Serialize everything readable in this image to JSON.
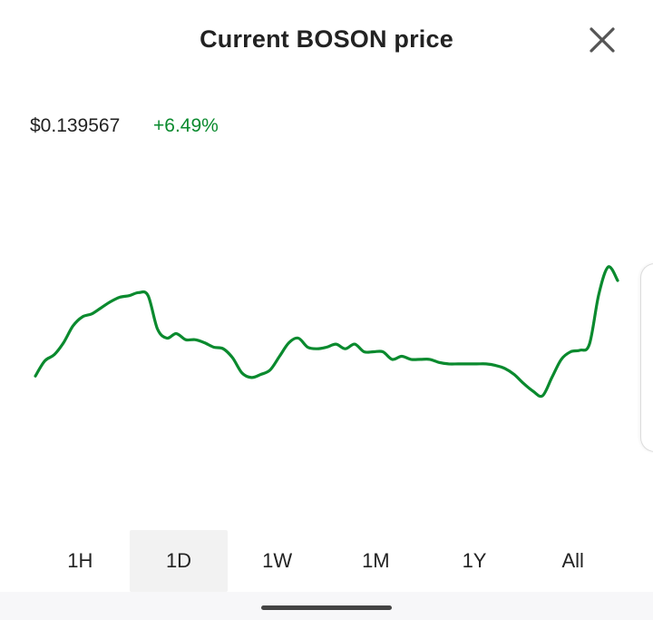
{
  "header": {
    "title": "Current BOSON price",
    "close_icon": "close-icon"
  },
  "price": {
    "value": "$0.139567",
    "change": "+6.49%",
    "change_color": "#0a8a2e"
  },
  "chart_data": {
    "type": "line",
    "title": "",
    "xlabel": "",
    "ylabel": "",
    "grid": false,
    "line_color": "#0a8a2e",
    "series": [
      {
        "values": [
          0.12928,
          0.13176,
          0.13276,
          0.13474,
          0.13747,
          0.13896,
          0.13946,
          0.14045,
          0.14145,
          0.14219,
          0.14244,
          0.14294,
          0.14244,
          0.13698,
          0.13549,
          0.13623,
          0.13524,
          0.13524,
          0.13474,
          0.134,
          0.13375,
          0.13226,
          0.12978,
          0.12904,
          0.12954,
          0.13028,
          0.13251,
          0.13474,
          0.13549,
          0.134,
          0.13375,
          0.134,
          0.1345,
          0.13375,
          0.1345,
          0.13325,
          0.13325,
          0.13325,
          0.13201,
          0.13251,
          0.13201,
          0.13201,
          0.13201,
          0.13151,
          0.13127,
          0.13127,
          0.13127,
          0.13127,
          0.13127,
          0.13102,
          0.13052,
          0.12953,
          0.12804,
          0.1268,
          0.12605,
          0.12903,
          0.13201,
          0.13326,
          0.13351,
          0.1345,
          0.14269,
          0.14715,
          0.14492
        ]
      }
    ]
  },
  "tabs": {
    "items": [
      {
        "label": "1H",
        "active": false
      },
      {
        "label": "1D",
        "active": true
      },
      {
        "label": "1W",
        "active": false
      },
      {
        "label": "1M",
        "active": false
      },
      {
        "label": "1Y",
        "active": false
      },
      {
        "label": "All",
        "active": false
      }
    ]
  }
}
